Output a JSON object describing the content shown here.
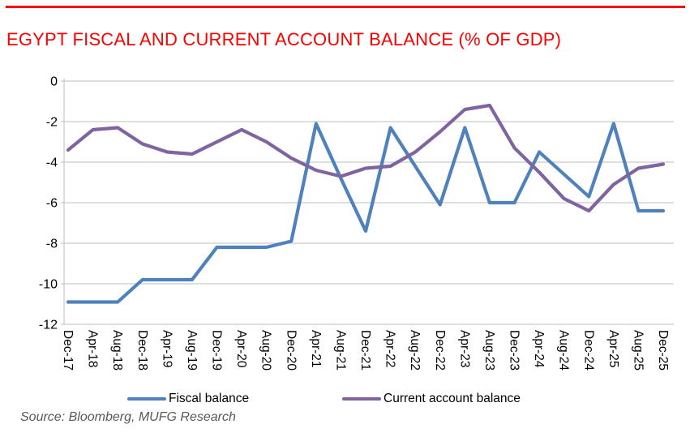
{
  "header": {
    "title": "EGYPT FISCAL AND CURRENT ACCOUNT BALANCE (% OF GDP)",
    "accent_color": "#ff0000"
  },
  "chart_data": {
    "type": "line",
    "categories": [
      "Dec-17",
      "Apr-18",
      "Aug-18",
      "Dec-18",
      "Apr-19",
      "Aug-19",
      "Dec-19",
      "Apr-20",
      "Aug-20",
      "Dec-20",
      "Apr-21",
      "Aug-21",
      "Dec-21",
      "Apr-22",
      "Aug-22",
      "Dec-22",
      "Apr-23",
      "Aug-23",
      "Dec-23",
      "Apr-24",
      "Aug-24",
      "Dec-24",
      "Apr-25",
      "Aug-25",
      "Dec-25"
    ],
    "series": [
      {
        "name": "Fiscal balance",
        "color": "#4F81BD",
        "values": [
          -10.9,
          -10.9,
          -10.9,
          -9.8,
          -9.8,
          -9.8,
          -8.2,
          -8.2,
          -8.2,
          -7.9,
          -2.1,
          -4.8,
          -7.4,
          -2.3,
          -4.2,
          -6.1,
          -2.3,
          -6.0,
          -6.0,
          -3.5,
          -4.6,
          -5.7,
          -2.1,
          -6.4,
          -6.4
        ]
      },
      {
        "name": "Current account balance",
        "color": "#8064A2",
        "values": [
          -3.4,
          -2.4,
          -2.3,
          -3.1,
          -3.5,
          -3.6,
          -3.0,
          -2.4,
          -3.0,
          -3.8,
          -4.4,
          -4.7,
          -4.3,
          -4.2,
          -3.5,
          -2.5,
          -1.4,
          -1.2,
          -3.3,
          -4.5,
          -5.8,
          -6.4,
          -5.1,
          -4.3,
          -4.1
        ]
      }
    ],
    "title": "EGYPT FISCAL AND CURRENT ACCOUNT BALANCE (% OF GDP)",
    "xlabel": "",
    "ylabel": "",
    "ylim": [
      -12,
      0
    ],
    "yticks": [
      0,
      -2,
      -4,
      -6,
      -8,
      -10,
      -12
    ],
    "grid": "horizontal",
    "grid_color": "#C9C9C9",
    "legend_position": "bottom"
  },
  "source": {
    "text": "Source: Bloomberg, MUFG Research"
  }
}
